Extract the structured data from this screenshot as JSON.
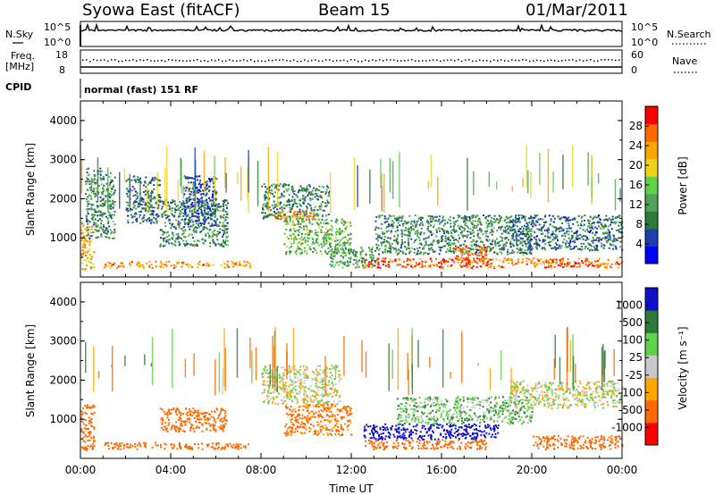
{
  "header": {
    "station": "Syowa East (fitACF)",
    "beam": "Beam 15",
    "date": "01/Mar/2011"
  },
  "strips": {
    "nsky_label": "N.Sky",
    "nsky_top_tick": "10^5",
    "nsky_bottom_tick": "10^0",
    "nsearch_label": "N.Search",
    "nsearch_top_tick": "10^5",
    "nsearch_bottom_tick": "10^0",
    "freq_label": "Freq.",
    "freq_unit": "[MHz]",
    "freq_top_tick": "18",
    "freq_bottom_tick": "8",
    "nave_label": "Nave",
    "nave_top_tick": "60",
    "nave_bottom_tick": "0",
    "cpid_label": "CPID",
    "cpid_text": "normal (fast) 151 RF"
  },
  "colors": {
    "power_scale": [
      "#0000ff",
      "#1f3fb0",
      "#2e7a3a",
      "#4fa35a",
      "#5fd24a",
      "#f1d21a",
      "#ffa500",
      "#ff6a00",
      "#ff0000"
    ],
    "velocity_scale": [
      "#1010c8",
      "#2e7a3a",
      "#5fd24a",
      "#c8c8c8",
      "#ffa500",
      "#ff6a00",
      "#ff0000"
    ]
  },
  "chart_data": [
    {
      "type": "heatmap",
      "panel": "power",
      "xlabel": "",
      "ylabel": "Slant Range [km]",
      "xlim": [
        "00:00",
        "24:00"
      ],
      "ylim": [
        0,
        4500
      ],
      "yticks": [
        "1000",
        "2000",
        "3000",
        "4000"
      ],
      "colorbar": {
        "label": "Power [dB]",
        "ticks": [
          "4",
          "8",
          "12",
          "16",
          "20",
          "24",
          "28"
        ],
        "range": [
          0,
          32
        ]
      },
      "regions": [
        {
          "t0": 0.0,
          "t1": 0.6,
          "r0": 200,
          "r1": 1400,
          "value": 22
        },
        {
          "t0": 0.2,
          "t1": 1.5,
          "r0": 1000,
          "r1": 2800,
          "value": 10
        },
        {
          "t0": 1.0,
          "t1": 7.5,
          "r0": 250,
          "r1": 420,
          "value": 24
        },
        {
          "t0": 2.0,
          "t1": 3.5,
          "r0": 1400,
          "r1": 2600,
          "value": 8
        },
        {
          "t0": 3.5,
          "t1": 6.5,
          "r0": 800,
          "r1": 2000,
          "value": 10
        },
        {
          "t0": 4.5,
          "t1": 6.0,
          "r0": 1300,
          "r1": 2600,
          "value": 6
        },
        {
          "t0": 8.0,
          "t1": 11.0,
          "r0": 1500,
          "r1": 2400,
          "value": 10
        },
        {
          "t0": 8.5,
          "t1": 10.5,
          "r0": 1500,
          "r1": 1700,
          "value": 24
        },
        {
          "t0": 9.0,
          "t1": 12.0,
          "r0": 600,
          "r1": 1500,
          "value": 14
        },
        {
          "t0": 11.0,
          "t1": 13.0,
          "r0": 250,
          "r1": 800,
          "value": 12
        },
        {
          "t0": 12.5,
          "t1": 18.0,
          "r0": 250,
          "r1": 500,
          "value": 28
        },
        {
          "t0": 13.0,
          "t1": 20.0,
          "r0": 600,
          "r1": 1600,
          "value": 10
        },
        {
          "t0": 16.5,
          "t1": 18.0,
          "r0": 400,
          "r1": 800,
          "value": 26
        },
        {
          "t0": 18.0,
          "t1": 24.0,
          "r0": 250,
          "r1": 500,
          "value": 26
        },
        {
          "t0": 19.0,
          "t1": 24.0,
          "r0": 700,
          "r1": 1600,
          "value": 8
        }
      ]
    },
    {
      "type": "heatmap",
      "panel": "velocity",
      "xlabel": "Time UT",
      "ylabel": "Slant Range [km]",
      "xlim": [
        "00:00",
        "24:00"
      ],
      "ylim": [
        0,
        4500
      ],
      "xticks": [
        "00:00",
        "04:00",
        "08:00",
        "12:00",
        "16:00",
        "20:00",
        "00:00"
      ],
      "yticks": [
        "1000",
        "2000",
        "3000",
        "4000"
      ],
      "colorbar": {
        "label": "Velocity [m s⁻¹]",
        "ticks": [
          "1000",
          "500",
          "100",
          "25",
          "-25",
          "-100",
          "-500",
          "-1000"
        ]
      },
      "regions": [
        {
          "t0": 0.0,
          "t1": 0.6,
          "r0": 200,
          "r1": 1400,
          "value": -300
        },
        {
          "t0": 1.0,
          "t1": 7.5,
          "r0": 250,
          "r1": 420,
          "value": -200
        },
        {
          "t0": 3.5,
          "t1": 6.5,
          "r0": 700,
          "r1": 1300,
          "value": -300
        },
        {
          "t0": 8.0,
          "t1": 11.5,
          "r0": 1400,
          "r1": 2400,
          "value": 0
        },
        {
          "t0": 9.0,
          "t1": 12.0,
          "r0": 600,
          "r1": 1400,
          "value": -150
        },
        {
          "t0": 12.5,
          "t1": 18.0,
          "r0": 250,
          "r1": 500,
          "value": -200
        },
        {
          "t0": 12.5,
          "t1": 18.5,
          "r0": 500,
          "r1": 900,
          "value": 800
        },
        {
          "t0": 14.0,
          "t1": 20.0,
          "r0": 900,
          "r1": 1600,
          "value": 60
        },
        {
          "t0": 19.0,
          "t1": 24.0,
          "r0": 1300,
          "r1": 2000,
          "value": 0
        },
        {
          "t0": 20.0,
          "t1": 24.0,
          "r0": 250,
          "r1": 600,
          "value": -400
        }
      ]
    }
  ]
}
